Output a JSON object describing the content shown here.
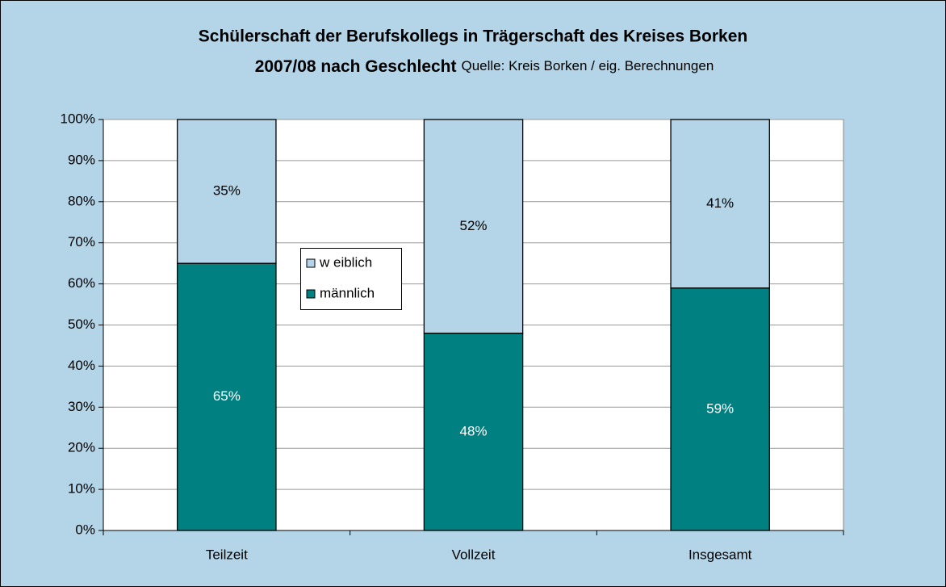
{
  "chart_data": {
    "type": "stacked_bar",
    "title": [
      "Schülerschaft der Berufskollegs in Trägerschaft des Kreises Borken",
      "2007/08 nach Geschlecht"
    ],
    "subtitle": "Quelle: Kreis Borken / eig. Berechnungen",
    "categories": [
      "Teilzeit",
      "Vollzeit",
      "Insgesamt"
    ],
    "series": [
      {
        "name": "männlich",
        "color": "#008080",
        "label_color": "#ffffff",
        "values": [
          65,
          48,
          59
        ],
        "value_labels": [
          "65%",
          "48%",
          "59%"
        ]
      },
      {
        "name": "w eiblich",
        "color": "#b4d4e8",
        "label_color": "#000000",
        "values": [
          35,
          52,
          41
        ],
        "value_labels": [
          "35%",
          "52%",
          "41%"
        ]
      }
    ],
    "ylim": [
      0,
      100
    ],
    "yticks": [
      {
        "value": 0,
        "label": "0%"
      },
      {
        "value": 10,
        "label": "10%"
      },
      {
        "value": 20,
        "label": "20%"
      },
      {
        "value": 30,
        "label": "30%"
      },
      {
        "value": 40,
        "label": "40%"
      },
      {
        "value": 50,
        "label": "50%"
      },
      {
        "value": 60,
        "label": "60%"
      },
      {
        "value": 70,
        "label": "70%"
      },
      {
        "value": 80,
        "label": "80%"
      },
      {
        "value": 90,
        "label": "90%"
      },
      {
        "value": 100,
        "label": "100%"
      }
    ],
    "grid": true
  }
}
